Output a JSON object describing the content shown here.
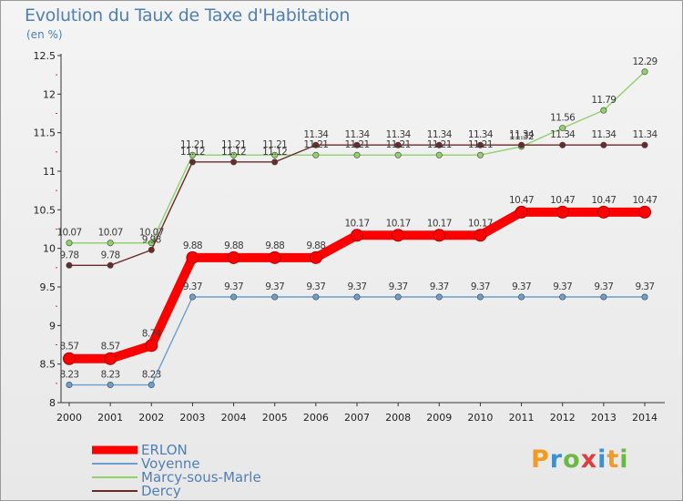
{
  "header": {
    "title": "Evolution du Taux de Taxe d'Habitation",
    "subtitle": "(en %)"
  },
  "logo": {
    "letters": [
      "P",
      "r",
      "o",
      "x",
      "i",
      "t",
      "i"
    ],
    "colors": [
      "#f29a22",
      "#3f8fd0",
      "#6cb844",
      "#e23d3d",
      "#3f8fd0",
      "#f29a22",
      "#6cb844"
    ]
  },
  "chart_data": {
    "type": "line",
    "title": "Evolution du Taux de Taxe d'Habitation",
    "subtitle": "(en %)",
    "xlabel": "",
    "ylabel": "(en %)",
    "x": [
      "2000",
      "2001",
      "2002",
      "2003",
      "2004",
      "2005",
      "2006",
      "2007",
      "2008",
      "2009",
      "2010",
      "2011",
      "2012",
      "2013",
      "2014"
    ],
    "ylim": [
      8,
      12.5
    ],
    "yticks": [
      "8",
      "8.5",
      "9",
      "9.5",
      "10",
      "10.5",
      "11",
      "11.5",
      "12",
      "12.5"
    ],
    "grid": false,
    "legend_position": "bottom-left",
    "series": [
      {
        "name": "ERLON",
        "color": "#ff0000",
        "values": [
          8.57,
          8.57,
          8.74,
          9.88,
          9.88,
          9.88,
          9.88,
          10.17,
          10.17,
          10.17,
          10.17,
          10.47,
          10.47,
          10.47,
          10.47
        ],
        "labels": [
          "8.57",
          "8.57",
          "8.74",
          "9.88",
          "9.88",
          "9.88",
          "9.88",
          "10.17",
          "10.17",
          "10.17",
          "10.17",
          "10.47",
          "10.47",
          "10.47",
          "10.47"
        ]
      },
      {
        "name": "Voyenne",
        "color": "#6a9fd0",
        "values": [
          8.23,
          8.23,
          8.23,
          9.37,
          9.37,
          9.37,
          9.37,
          9.37,
          9.37,
          9.37,
          9.37,
          9.37,
          9.37,
          9.37,
          9.37
        ],
        "labels": [
          "8.23",
          "8.23",
          "8.23",
          "9.37",
          "9.37",
          "9.37",
          "9.37",
          "9.37",
          "9.37",
          "9.37",
          "9.37",
          "9.37",
          "9.37",
          "9.37",
          "9.37"
        ]
      },
      {
        "name": "Marcy-sous-Marle",
        "color": "#8fd16a",
        "values": [
          10.07,
          10.07,
          10.07,
          11.21,
          11.21,
          11.21,
          11.21,
          11.21,
          11.21,
          11.21,
          11.21,
          11.32,
          11.56,
          11.79,
          12.29
        ],
        "labels": [
          "10.07",
          "10.07",
          "10.07",
          "11.21",
          "11.21",
          "11.21",
          "11.21",
          "11.21",
          "11.21",
          "11.21",
          "11.21",
          "11.32",
          "11.56",
          "11.79",
          "12.29"
        ]
      },
      {
        "name": "Dercy",
        "color": "#6b2a2a",
        "values": [
          9.78,
          9.78,
          9.98,
          11.12,
          11.12,
          11.12,
          11.34,
          11.34,
          11.34,
          11.34,
          11.34,
          11.34,
          11.34,
          11.34,
          11.34
        ],
        "labels": [
          "9.78",
          "9.78",
          "9.98",
          "11.12",
          "11.12",
          "11.12",
          "11.34",
          "11.34",
          "11.34",
          "11.34",
          "11.34",
          "11.34",
          "11.34",
          "11.34",
          "11.34"
        ]
      }
    ]
  }
}
